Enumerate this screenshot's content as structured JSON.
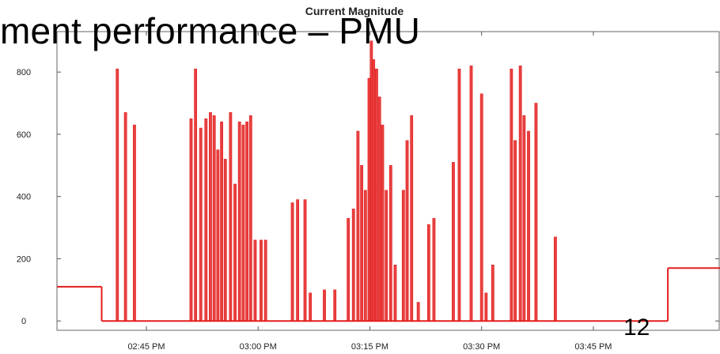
{
  "slide": {
    "title": "ment performance – PMU",
    "page_number": "12"
  },
  "chart_data": {
    "type": "bar",
    "title": "Current Magnitude",
    "xlabel": "",
    "ylabel": "",
    "ylim": [
      -30,
      930
    ],
    "xlim_minutes": [
      -12,
      77
    ],
    "x_ticks": [
      {
        "label": "02:45 PM",
        "value": 0
      },
      {
        "label": "03:00 PM",
        "value": 15
      },
      {
        "label": "03:15 PM",
        "value": 30
      },
      {
        "label": "03:30 PM",
        "value": 45
      },
      {
        "label": "03:45 PM",
        "value": 60
      }
    ],
    "y_ticks": [
      0,
      200,
      400,
      600,
      800
    ],
    "grid": false,
    "color": "#e41e1e",
    "baseline_segments": [
      {
        "from_minute": -12,
        "to_minute": -6,
        "value": 110
      },
      {
        "from_minute": -6,
        "to_minute": 70,
        "value": 0
      },
      {
        "from_minute": 70,
        "to_minute": 77,
        "value": 170
      }
    ],
    "bars": [
      {
        "x": -3.9,
        "value": 810
      },
      {
        "x": -2.8,
        "value": 670
      },
      {
        "x": -1.6,
        "value": 630
      },
      {
        "x": 6.0,
        "value": 650
      },
      {
        "x": 6.6,
        "value": 810
      },
      {
        "x": 7.3,
        "value": 620
      },
      {
        "x": 8.0,
        "value": 650
      },
      {
        "x": 8.6,
        "value": 670
      },
      {
        "x": 9.1,
        "value": 660
      },
      {
        "x": 9.6,
        "value": 550
      },
      {
        "x": 10.1,
        "value": 640
      },
      {
        "x": 10.6,
        "value": 520
      },
      {
        "x": 11.3,
        "value": 670
      },
      {
        "x": 11.9,
        "value": 440
      },
      {
        "x": 12.5,
        "value": 640
      },
      {
        "x": 13.0,
        "value": 630
      },
      {
        "x": 13.5,
        "value": 640
      },
      {
        "x": 14.0,
        "value": 660
      },
      {
        "x": 14.6,
        "value": 260
      },
      {
        "x": 15.4,
        "value": 260
      },
      {
        "x": 16.0,
        "value": 260
      },
      {
        "x": 19.6,
        "value": 380
      },
      {
        "x": 20.3,
        "value": 390
      },
      {
        "x": 21.3,
        "value": 390
      },
      {
        "x": 22.0,
        "value": 90
      },
      {
        "x": 23.9,
        "value": 100
      },
      {
        "x": 25.3,
        "value": 100
      },
      {
        "x": 27.1,
        "value": 330
      },
      {
        "x": 27.8,
        "value": 360
      },
      {
        "x": 28.4,
        "value": 610
      },
      {
        "x": 28.9,
        "value": 500
      },
      {
        "x": 29.4,
        "value": 420
      },
      {
        "x": 29.9,
        "value": 780
      },
      {
        "x": 30.2,
        "value": 900
      },
      {
        "x": 30.5,
        "value": 840
      },
      {
        "x": 30.9,
        "value": 810
      },
      {
        "x": 31.3,
        "value": 720
      },
      {
        "x": 31.7,
        "value": 630
      },
      {
        "x": 32.2,
        "value": 420
      },
      {
        "x": 32.8,
        "value": 500
      },
      {
        "x": 33.4,
        "value": 180
      },
      {
        "x": 34.5,
        "value": 420
      },
      {
        "x": 35.0,
        "value": 580
      },
      {
        "x": 35.6,
        "value": 660
      },
      {
        "x": 36.5,
        "value": 60
      },
      {
        "x": 37.9,
        "value": 310
      },
      {
        "x": 38.6,
        "value": 330
      },
      {
        "x": 41.2,
        "value": 510
      },
      {
        "x": 42.0,
        "value": 810
      },
      {
        "x": 43.6,
        "value": 820
      },
      {
        "x": 45.0,
        "value": 730
      },
      {
        "x": 45.6,
        "value": 90
      },
      {
        "x": 46.5,
        "value": 180
      },
      {
        "x": 49.0,
        "value": 810
      },
      {
        "x": 49.5,
        "value": 580
      },
      {
        "x": 50.2,
        "value": 820
      },
      {
        "x": 50.7,
        "value": 660
      },
      {
        "x": 51.3,
        "value": 610
      },
      {
        "x": 52.3,
        "value": 700
      },
      {
        "x": 54.9,
        "value": 270
      }
    ]
  }
}
